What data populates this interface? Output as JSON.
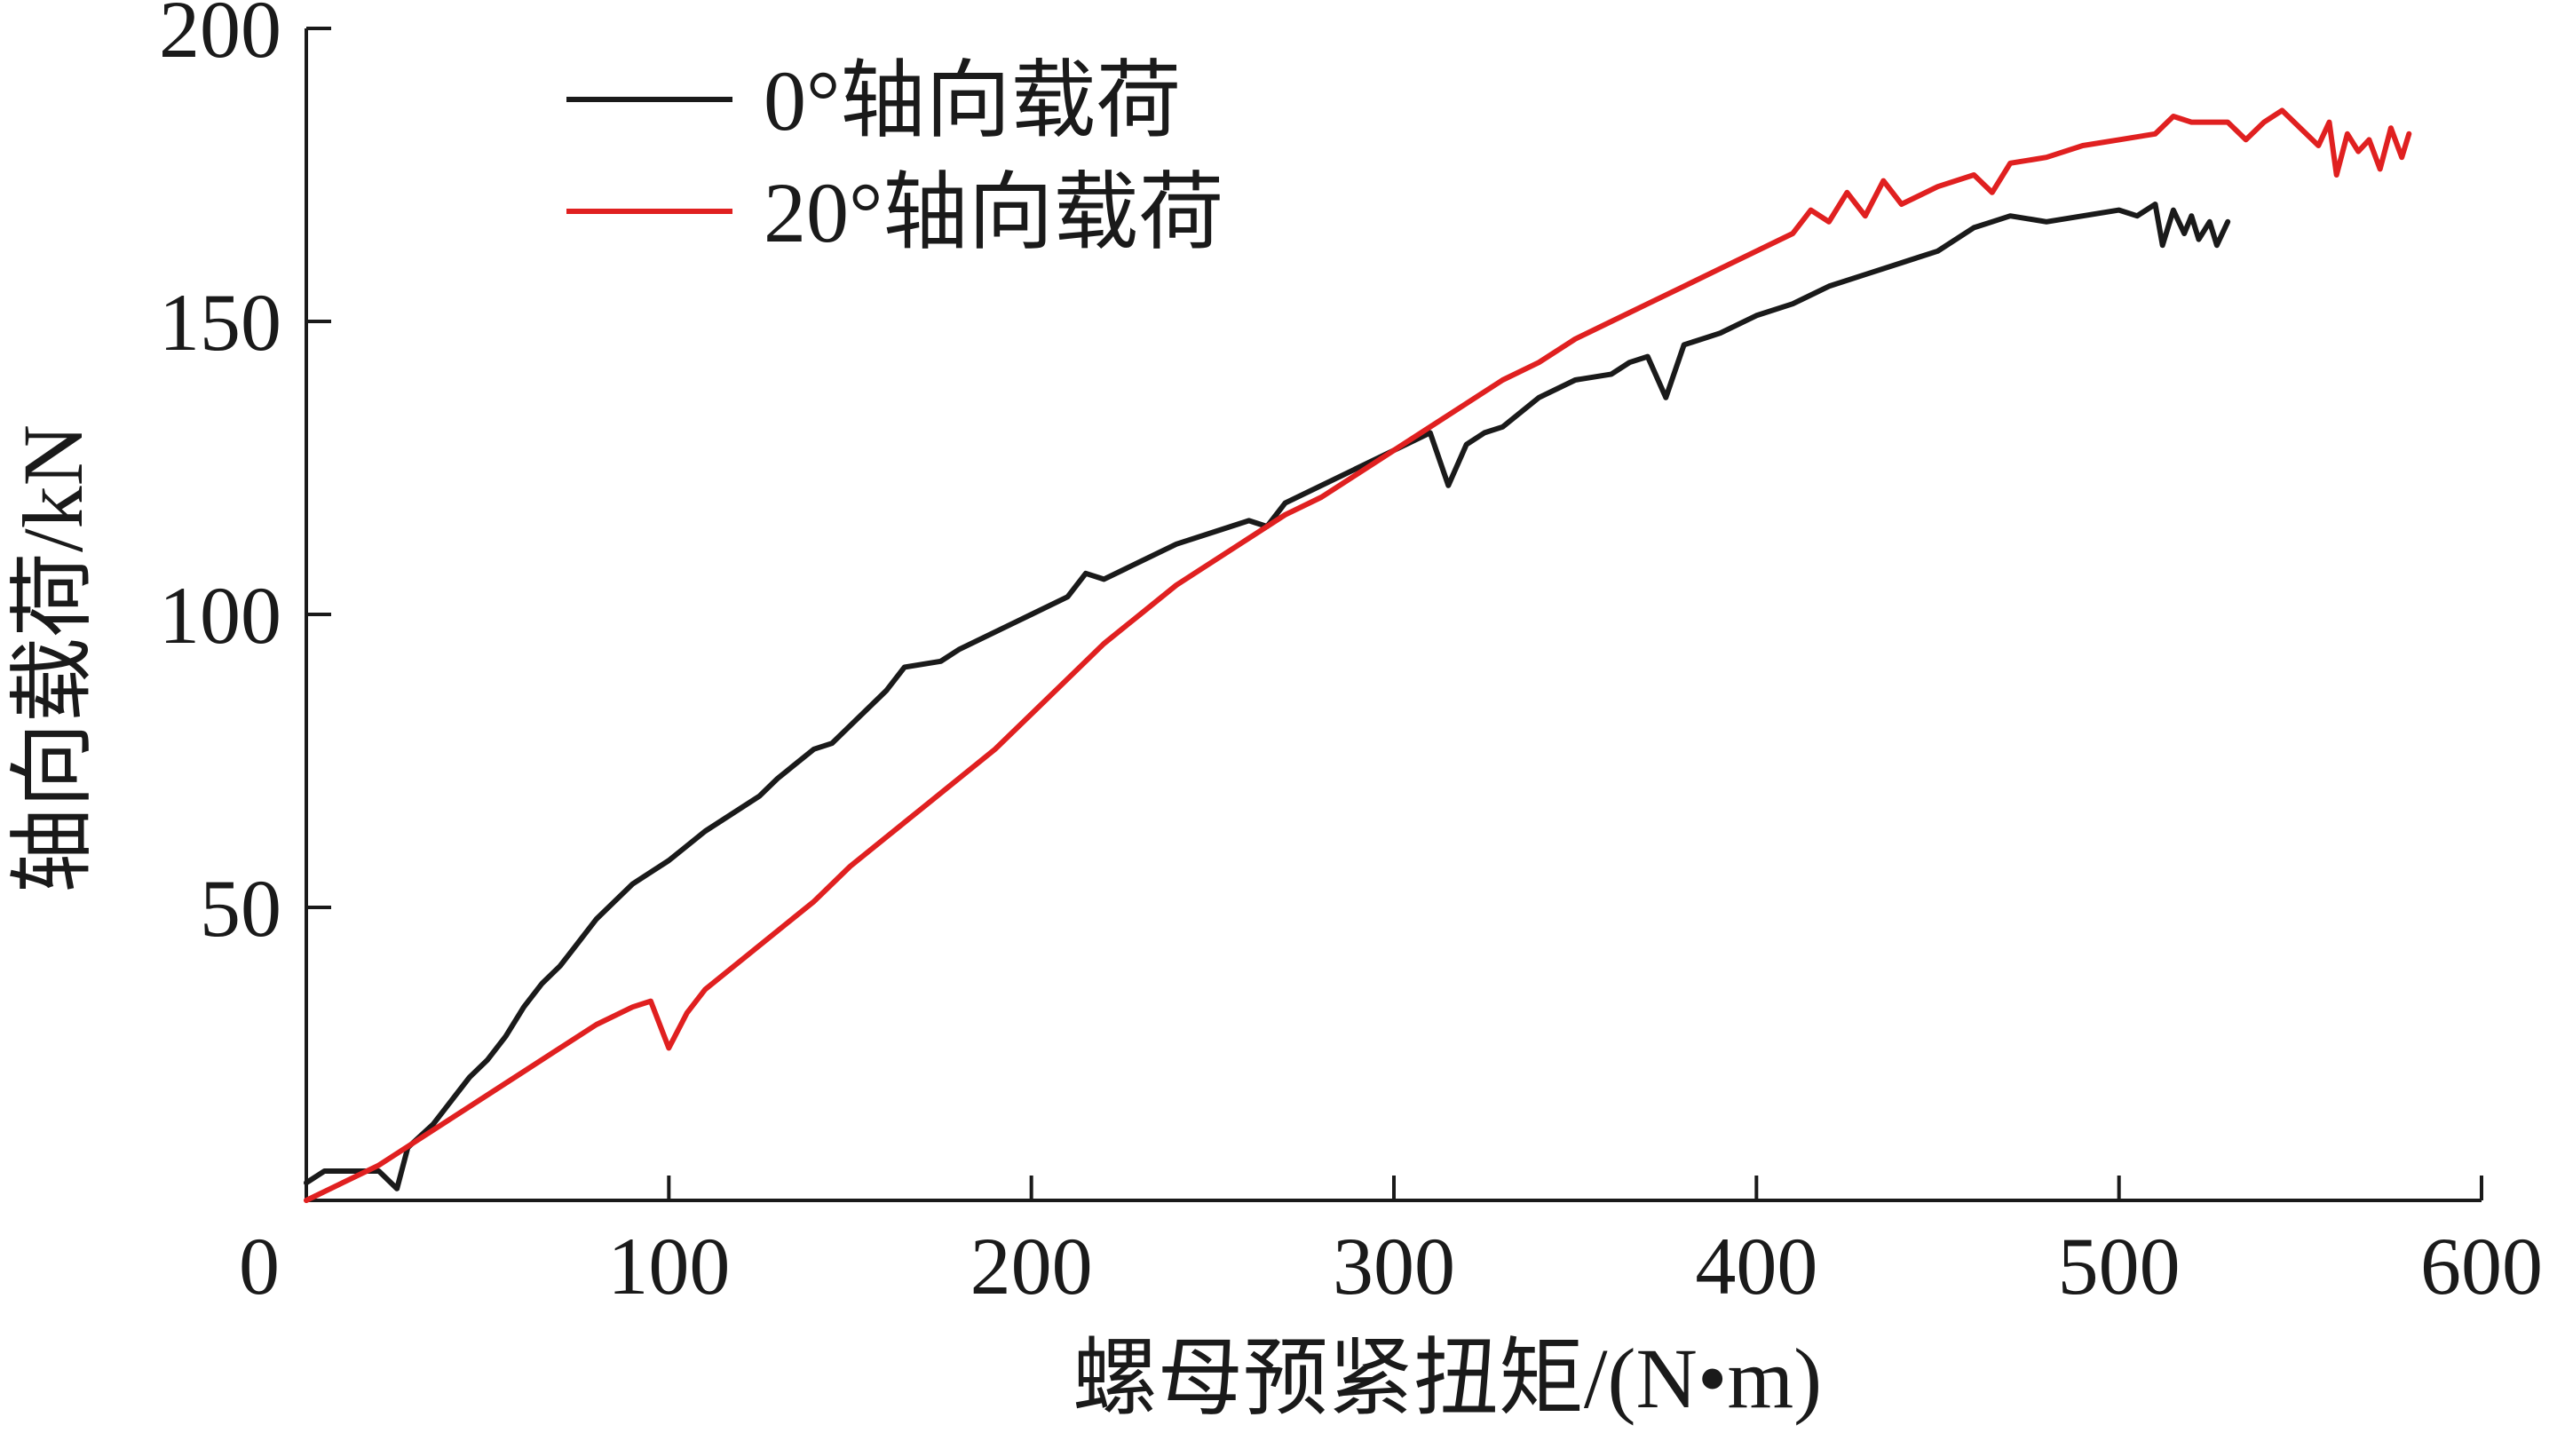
{
  "chart_data": {
    "type": "line",
    "xlabel": "螺母预紧扭矩/(N•m)",
    "ylabel": "轴向载荷/kN",
    "xlim": [
      0,
      600
    ],
    "ylim": [
      0,
      200
    ],
    "x_ticks": [
      0,
      100,
      200,
      300,
      400,
      500,
      600
    ],
    "y_ticks": [
      50,
      100,
      150,
      200
    ],
    "x_tick_labels": [
      "0",
      "100",
      "200",
      "300",
      "400",
      "500",
      "600"
    ],
    "y_tick_labels": [
      "50",
      "100",
      "150",
      "200"
    ],
    "grid": false,
    "legend_position": "top-left",
    "series": [
      {
        "name": "0°轴向载荷",
        "color": "#1a1a1a",
        "points": [
          [
            0,
            3
          ],
          [
            5,
            5
          ],
          [
            12,
            5
          ],
          [
            20,
            5
          ],
          [
            25,
            2
          ],
          [
            28,
            9
          ],
          [
            35,
            13
          ],
          [
            40,
            17
          ],
          [
            45,
            21
          ],
          [
            50,
            24
          ],
          [
            55,
            28
          ],
          [
            60,
            33
          ],
          [
            65,
            37
          ],
          [
            70,
            40
          ],
          [
            75,
            44
          ],
          [
            80,
            48
          ],
          [
            85,
            51
          ],
          [
            90,
            54
          ],
          [
            95,
            56
          ],
          [
            100,
            58
          ],
          [
            110,
            63
          ],
          [
            120,
            67
          ],
          [
            125,
            69
          ],
          [
            130,
            72
          ],
          [
            140,
            77
          ],
          [
            145,
            78
          ],
          [
            150,
            81
          ],
          [
            160,
            87
          ],
          [
            165,
            91
          ],
          [
            175,
            92
          ],
          [
            180,
            94
          ],
          [
            190,
            97
          ],
          [
            200,
            100
          ],
          [
            210,
            103
          ],
          [
            215,
            107
          ],
          [
            220,
            106
          ],
          [
            230,
            109
          ],
          [
            240,
            112
          ],
          [
            250,
            114
          ],
          [
            260,
            116
          ],
          [
            265,
            115
          ],
          [
            270,
            119
          ],
          [
            280,
            122
          ],
          [
            290,
            125
          ],
          [
            300,
            128
          ],
          [
            310,
            131
          ],
          [
            315,
            122
          ],
          [
            320,
            129
          ],
          [
            325,
            131
          ],
          [
            330,
            132
          ],
          [
            340,
            137
          ],
          [
            350,
            140
          ],
          [
            360,
            141
          ],
          [
            365,
            143
          ],
          [
            370,
            144
          ],
          [
            375,
            137
          ],
          [
            380,
            146
          ],
          [
            390,
            148
          ],
          [
            400,
            151
          ],
          [
            410,
            153
          ],
          [
            420,
            156
          ],
          [
            430,
            158
          ],
          [
            440,
            160
          ],
          [
            445,
            161
          ],
          [
            450,
            162
          ],
          [
            460,
            166
          ],
          [
            465,
            167
          ],
          [
            470,
            168
          ],
          [
            480,
            167
          ],
          [
            490,
            168
          ],
          [
            500,
            169
          ],
          [
            505,
            168
          ],
          [
            510,
            170
          ],
          [
            512,
            163
          ],
          [
            515,
            169
          ],
          [
            518,
            165
          ],
          [
            520,
            168
          ],
          [
            522,
            164
          ],
          [
            525,
            167
          ],
          [
            527,
            163
          ],
          [
            530,
            167
          ]
        ]
      },
      {
        "name": "20°轴向载荷",
        "color": "#e02020",
        "points": [
          [
            0,
            0
          ],
          [
            10,
            3
          ],
          [
            20,
            6
          ],
          [
            30,
            10
          ],
          [
            40,
            14
          ],
          [
            50,
            18
          ],
          [
            60,
            22
          ],
          [
            70,
            26
          ],
          [
            80,
            30
          ],
          [
            90,
            33
          ],
          [
            95,
            34
          ],
          [
            100,
            26
          ],
          [
            105,
            32
          ],
          [
            110,
            36
          ],
          [
            120,
            41
          ],
          [
            130,
            46
          ],
          [
            140,
            51
          ],
          [
            150,
            57
          ],
          [
            160,
            62
          ],
          [
            170,
            67
          ],
          [
            180,
            72
          ],
          [
            190,
            77
          ],
          [
            200,
            83
          ],
          [
            210,
            89
          ],
          [
            220,
            95
          ],
          [
            230,
            100
          ],
          [
            240,
            105
          ],
          [
            250,
            109
          ],
          [
            260,
            113
          ],
          [
            270,
            117
          ],
          [
            280,
            120
          ],
          [
            290,
            124
          ],
          [
            300,
            128
          ],
          [
            310,
            132
          ],
          [
            320,
            136
          ],
          [
            330,
            140
          ],
          [
            340,
            143
          ],
          [
            350,
            147
          ],
          [
            360,
            150
          ],
          [
            370,
            153
          ],
          [
            380,
            156
          ],
          [
            390,
            159
          ],
          [
            400,
            162
          ],
          [
            410,
            165
          ],
          [
            415,
            169
          ],
          [
            420,
            167
          ],
          [
            425,
            172
          ],
          [
            430,
            168
          ],
          [
            435,
            174
          ],
          [
            440,
            170
          ],
          [
            450,
            173
          ],
          [
            460,
            175
          ],
          [
            465,
            172
          ],
          [
            470,
            177
          ],
          [
            480,
            178
          ],
          [
            490,
            180
          ],
          [
            500,
            181
          ],
          [
            510,
            182
          ],
          [
            515,
            185
          ],
          [
            520,
            184
          ],
          [
            530,
            184
          ],
          [
            535,
            181
          ],
          [
            540,
            184
          ],
          [
            545,
            186
          ],
          [
            550,
            183
          ],
          [
            555,
            180
          ],
          [
            558,
            184
          ],
          [
            560,
            175
          ],
          [
            563,
            182
          ],
          [
            566,
            179
          ],
          [
            569,
            181
          ],
          [
            572,
            176
          ],
          [
            575,
            183
          ],
          [
            578,
            178
          ],
          [
            580,
            182
          ]
        ]
      }
    ]
  }
}
